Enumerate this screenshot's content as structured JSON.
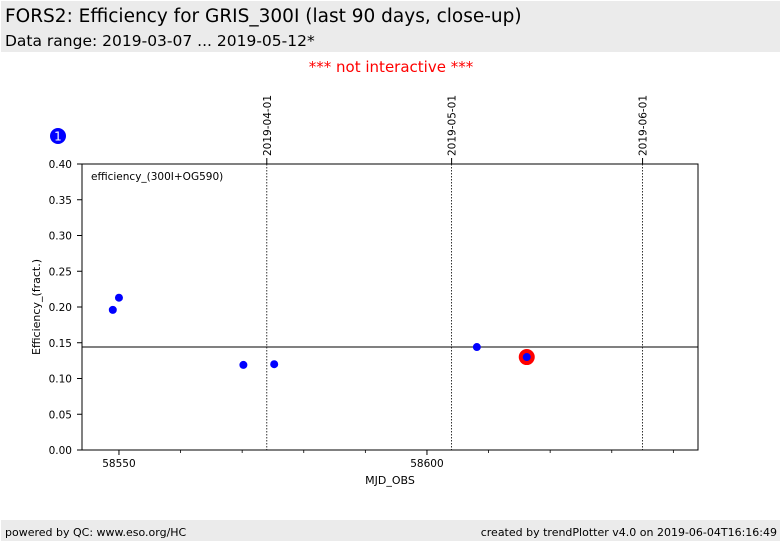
{
  "header": {
    "title": "FORS2: Efficiency for GRIS_300I (last 90 days, close-up)",
    "subtitle": "Data range: 2019-03-07 ... 2019-05-12*"
  },
  "notice": "*** not interactive ***",
  "panel_badge": "1",
  "footer": {
    "left": "powered by QC: www.eso.org/HC",
    "right": "created by trendPlotter v4.0 on 2019-06-04T16:16:49"
  },
  "colors": {
    "points": "#0000ff",
    "highlight": "#ff0000",
    "background_band": "#ebebeb",
    "notice": "#ff0000"
  },
  "chart_data": {
    "type": "scatter",
    "annotation": "efficiency_(300I+OG590)",
    "xlabel": "MJD_OBS",
    "ylabel": "Efficiency_(fract.)",
    "xlim": [
      58544,
      58644
    ],
    "ylim": [
      0,
      0.4
    ],
    "x_ticks": [
      58550,
      58600
    ],
    "x_ticks_labels": [
      "58550",
      "58600"
    ],
    "x_minor_ticks": [
      58560,
      58570,
      58580,
      58590,
      58610,
      58620,
      58630,
      58640
    ],
    "y_ticks": [
      0.0,
      0.05,
      0.1,
      0.15,
      0.2,
      0.25,
      0.3,
      0.35,
      0.4
    ],
    "y_tick_labels": [
      "0.00",
      "0.05",
      "0.10",
      "0.15",
      "0.20",
      "0.25",
      "0.30",
      "0.35",
      "0.40"
    ],
    "grid": false,
    "reference_line": {
      "y": 0.144
    },
    "date_markers": [
      {
        "x": 58574.0,
        "label": "2019-04-01"
      },
      {
        "x": 58604.0,
        "label": "2019-05-01"
      },
      {
        "x": 58635.0,
        "label": "2019-06-01"
      }
    ],
    "series": [
      {
        "x": [
          58549.0,
          58550.0,
          58570.2,
          58575.2,
          58608.1,
          58616.2
        ],
        "y": [
          0.196,
          0.213,
          0.119,
          0.12,
          0.144,
          0.13
        ]
      }
    ],
    "highlight": {
      "x": 58616.2,
      "y": 0.13
    }
  }
}
